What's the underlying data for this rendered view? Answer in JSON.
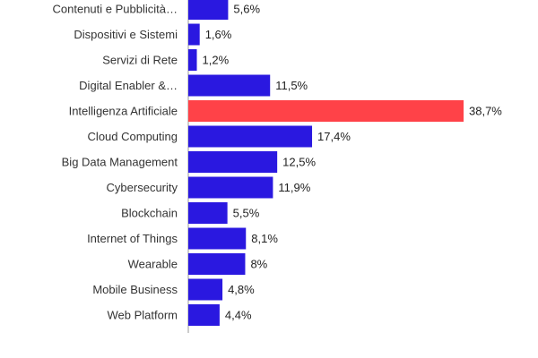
{
  "chart_data": {
    "type": "bar",
    "orientation": "horizontal",
    "categories": [
      "Contenuti e Pubblicità…",
      "Dispositivi e Sistemi",
      "Servizi di Rete",
      "Digital Enabler &…",
      "Intelligenza Artificiale",
      "Cloud Computing",
      "Big Data Management",
      "Cybersecurity",
      "Blockchain",
      "Internet of Things",
      "Wearable",
      "Mobile Business",
      "Web Platform"
    ],
    "values": [
      5.6,
      1.6,
      1.2,
      11.5,
      38.7,
      17.4,
      12.5,
      11.9,
      5.5,
      8.1,
      8,
      4.8,
      4.4
    ],
    "value_labels": [
      "5,6%",
      "1,6%",
      "1,2%",
      "11,5%",
      "38,7%",
      "17,4%",
      "12,5%",
      "11,9%",
      "5,5%",
      "8,1%",
      "8%",
      "4,8%",
      "4,4%"
    ],
    "highlight_index": 4,
    "colors": {
      "bar": "#2a18e0",
      "highlight": "#ff4248",
      "axis": "#999999"
    },
    "title": "",
    "xlabel": "",
    "ylabel": "",
    "xlim": [
      0,
      40
    ],
    "grid": false,
    "legend": "none"
  }
}
